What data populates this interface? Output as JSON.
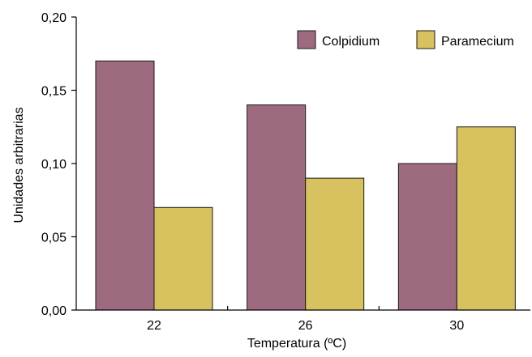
{
  "chart_data": {
    "type": "bar",
    "categories": [
      "22",
      "26",
      "30"
    ],
    "series": [
      {
        "name": "Colpidium",
        "values": [
          0.17,
          0.14,
          0.1
        ],
        "color": "#9e6a80"
      },
      {
        "name": "Paramecium",
        "values": [
          0.07,
          0.09,
          0.125
        ],
        "color": "#d8c15f"
      }
    ],
    "xlabel": "Temperatura (ºC)",
    "ylabel": "Unidades arbitrarias",
    "ylim": [
      0,
      0.2
    ],
    "yticks": [
      "0,00",
      "0,05",
      "0,10",
      "0,15",
      "0,20"
    ],
    "ytick_values": [
      0,
      0.05,
      0.1,
      0.15,
      0.2
    ],
    "grid": false,
    "legend_position": "top-right"
  }
}
